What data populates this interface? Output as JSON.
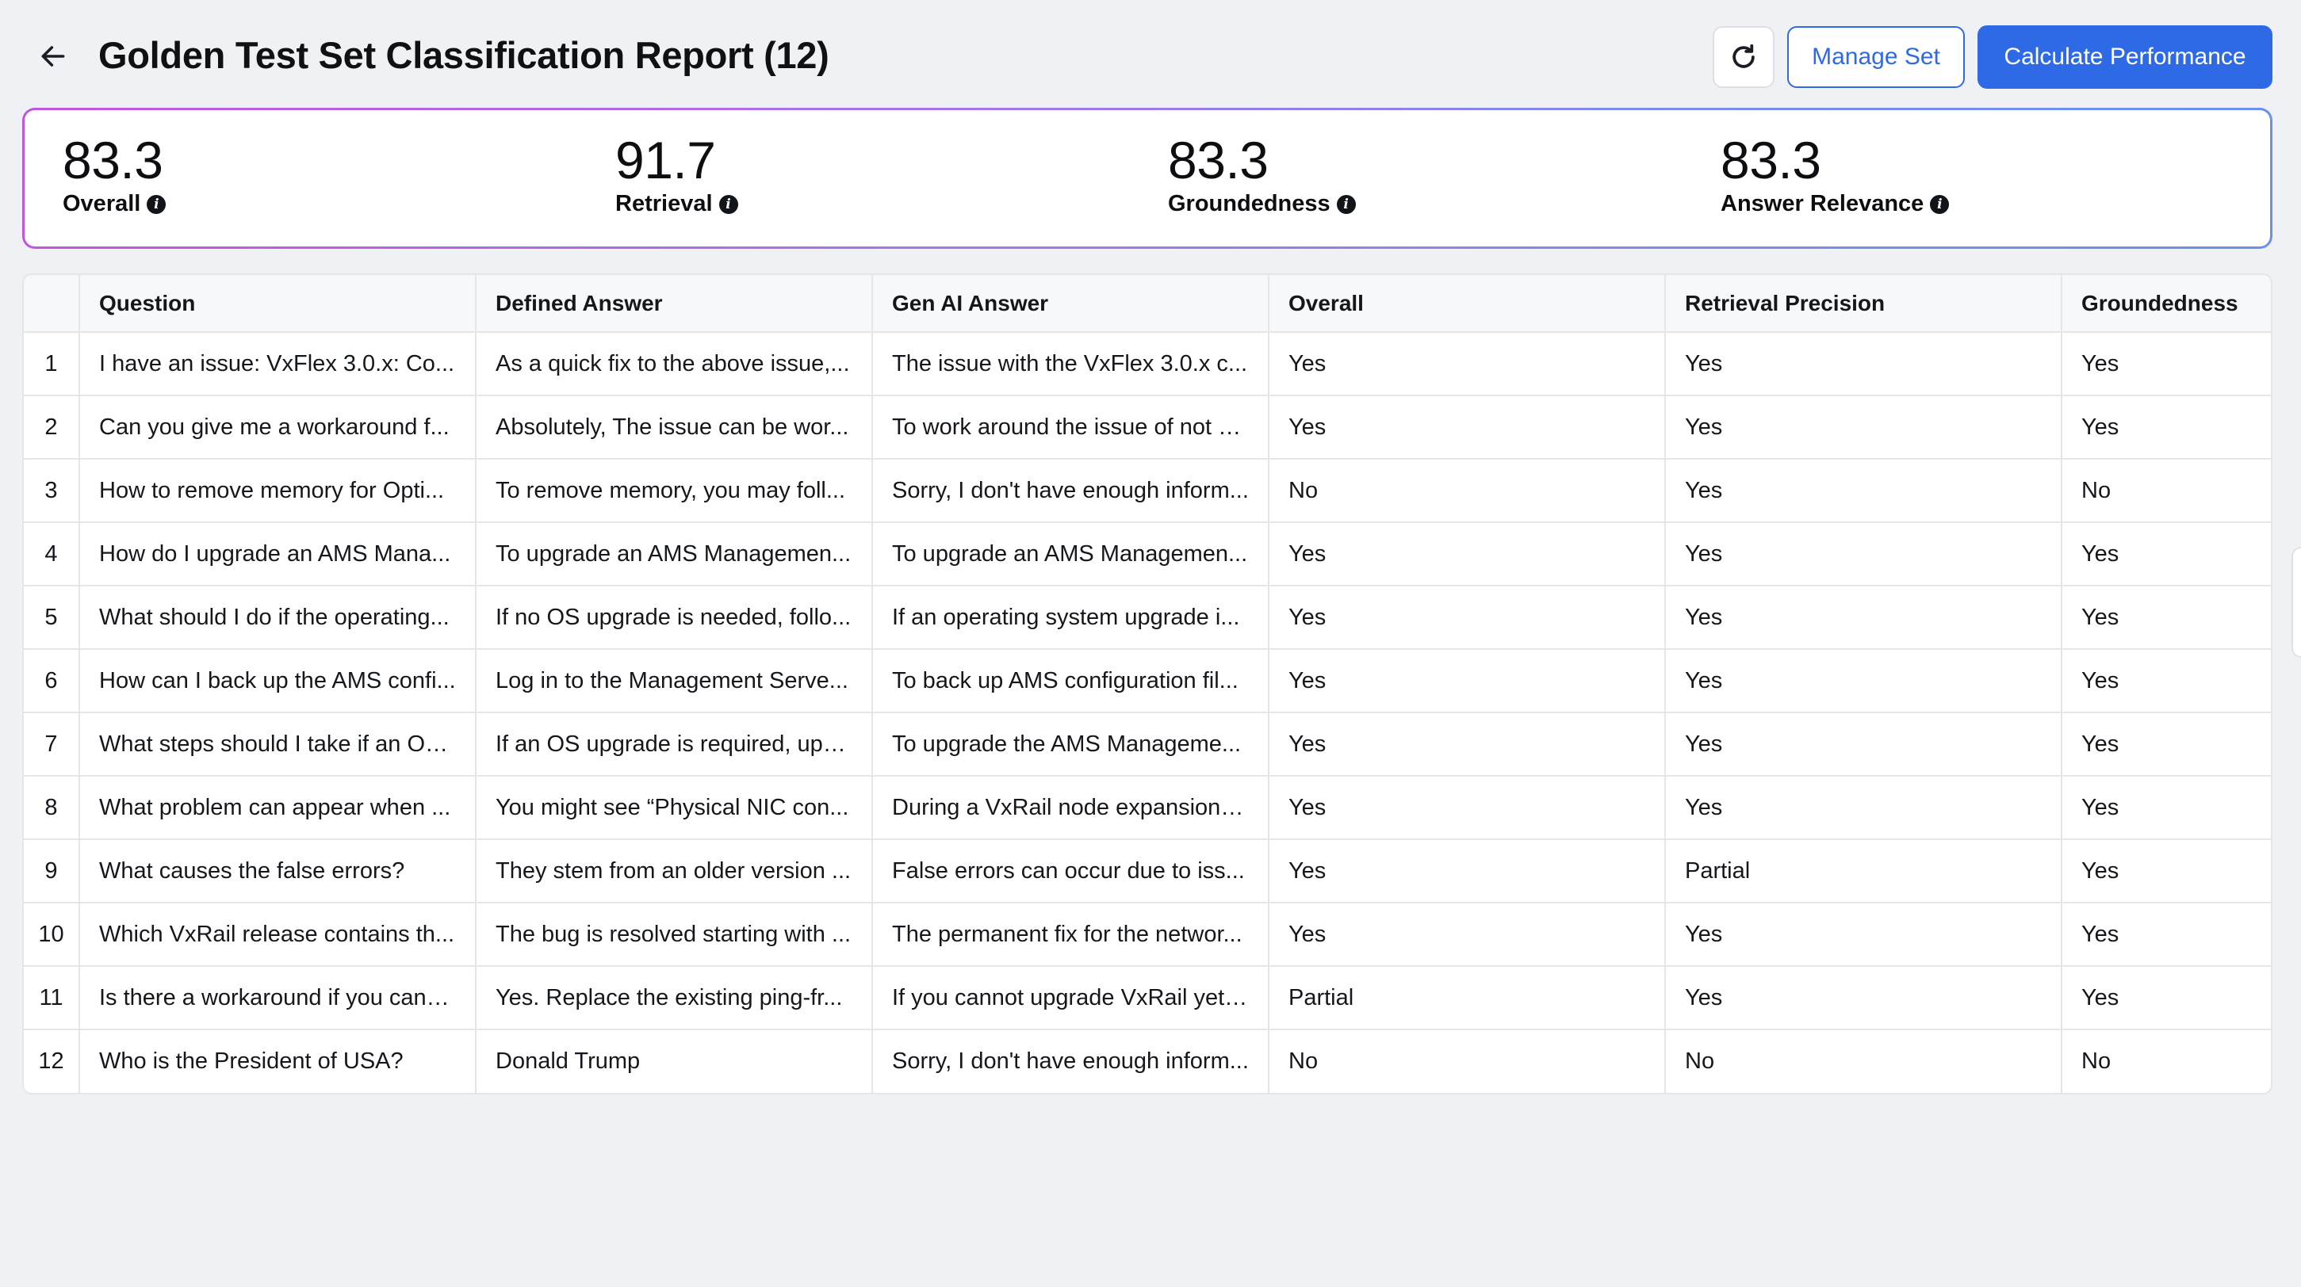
{
  "header": {
    "title": "Golden Test Set Classification Report (12)",
    "back_icon": "arrow-left-icon",
    "refresh_icon": "refresh-icon",
    "manage_label": "Manage Set",
    "calculate_label": "Calculate Performance",
    "accent_color": "#2f6ae6"
  },
  "metrics": [
    {
      "value": "83.3",
      "label": "Overall"
    },
    {
      "value": "91.7",
      "label": "Retrieval"
    },
    {
      "value": "83.3",
      "label": "Groundedness"
    },
    {
      "value": "83.3",
      "label": "Answer Relevance"
    }
  ],
  "table": {
    "columns": [
      "",
      "Question",
      "Defined Answer",
      "Gen AI Answer",
      "Overall",
      "Retrieval Precision",
      "Groundedness"
    ],
    "rows": [
      [
        "1",
        "I have an issue: VxFlex 3.0.x: Co...",
        "As a quick fix to the above issue,...",
        "The issue with the VxFlex 3.0.x c...",
        "Yes",
        "Yes",
        "Yes"
      ],
      [
        "2",
        "Can you give me a workaround f...",
        "Absolutely, The issue can be wor...",
        "To work around the issue of not a...",
        "Yes",
        "Yes",
        "Yes"
      ],
      [
        "3",
        "How to remove memory for Opti...",
        "To remove memory, you may foll...",
        "Sorry, I don't have enough inform...",
        "No",
        "Yes",
        "No"
      ],
      [
        "4",
        "How do I upgrade an AMS Mana...",
        "To upgrade an AMS Managemen...",
        "To upgrade an AMS Managemen...",
        "Yes",
        "Yes",
        "Yes"
      ],
      [
        "5",
        "What should I do if the operating...",
        "If no OS upgrade is needed, follo...",
        "If an operating system upgrade i...",
        "Yes",
        "Yes",
        "Yes"
      ],
      [
        "6",
        "How can I back up the AMS confi...",
        "Log in to the Management Serve...",
        "To back up AMS configuration fil...",
        "Yes",
        "Yes",
        "Yes"
      ],
      [
        "7",
        "What steps should I take if an OS...",
        "If an OS upgrade is required, upg...",
        "To upgrade the AMS Manageme...",
        "Yes",
        "Yes",
        "Yes"
      ],
      [
        "8",
        "What problem can appear when ...",
        "You might see “Physical NIC con...",
        "During a VxRail node expansion, ...",
        "Yes",
        "Yes",
        "Yes"
      ],
      [
        "9",
        "What causes the false errors?",
        "They stem from an older version ...",
        "False errors can occur due to iss...",
        "Yes",
        "Partial",
        "Yes"
      ],
      [
        "10",
        "Which VxRail release contains th...",
        "The bug is resolved starting with ...",
        "The permanent fix for the networ...",
        "Yes",
        "Yes",
        "Yes"
      ],
      [
        "11",
        "Is there a workaround if you cann...",
        "Yes. Replace the existing ping-fr...",
        "If you cannot upgrade VxRail yet,...",
        "Partial",
        "Yes",
        "Yes"
      ],
      [
        "12",
        "Who is the President of USA?",
        "Donald Trump",
        "Sorry, I don't have enough inform...",
        "No",
        "No",
        "No"
      ]
    ]
  }
}
